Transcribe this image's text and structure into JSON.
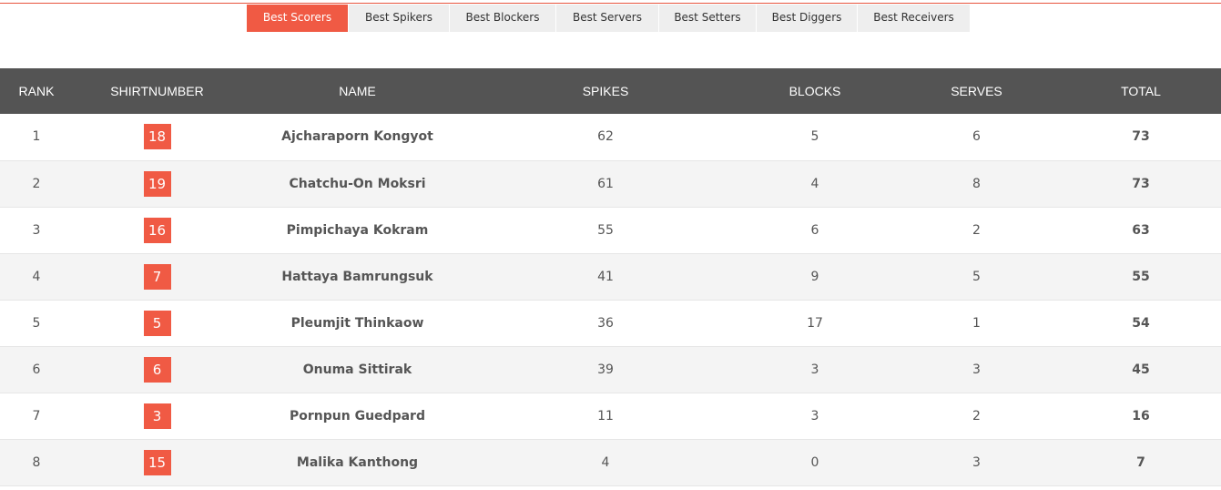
{
  "tabs": [
    {
      "label": "Best Scorers",
      "active": true
    },
    {
      "label": "Best Spikers",
      "active": false
    },
    {
      "label": "Best Blockers",
      "active": false
    },
    {
      "label": "Best Servers",
      "active": false
    },
    {
      "label": "Best Setters",
      "active": false
    },
    {
      "label": "Best Diggers",
      "active": false
    },
    {
      "label": "Best Receivers",
      "active": false
    }
  ],
  "table": {
    "headers": {
      "rank": "RANK",
      "shirtnumber": "SHIRTNUMBER",
      "name": "NAME",
      "spikes": "SPIKES",
      "blocks": "BLOCKS",
      "serves": "SERVES",
      "total": "TOTAL"
    },
    "rows": [
      {
        "rank": "1",
        "shirt": "18",
        "name": "Ajcharaporn Kongyot",
        "spikes": "62",
        "blocks": "5",
        "serves": "6",
        "total": "73"
      },
      {
        "rank": "2",
        "shirt": "19",
        "name": "Chatchu-On Moksri",
        "spikes": "61",
        "blocks": "4",
        "serves": "8",
        "total": "73"
      },
      {
        "rank": "3",
        "shirt": "16",
        "name": "Pimpichaya Kokram",
        "spikes": "55",
        "blocks": "6",
        "serves": "2",
        "total": "63"
      },
      {
        "rank": "4",
        "shirt": "7",
        "name": "Hattaya Bamrungsuk",
        "spikes": "41",
        "blocks": "9",
        "serves": "5",
        "total": "55"
      },
      {
        "rank": "5",
        "shirt": "5",
        "name": "Pleumjit Thinkaow",
        "spikes": "36",
        "blocks": "17",
        "serves": "1",
        "total": "54"
      },
      {
        "rank": "6",
        "shirt": "6",
        "name": "Onuma Sittirak",
        "spikes": "39",
        "blocks": "3",
        "serves": "3",
        "total": "45"
      },
      {
        "rank": "7",
        "shirt": "3",
        "name": "Pornpun Guedpard",
        "spikes": "11",
        "blocks": "3",
        "serves": "2",
        "total": "16"
      },
      {
        "rank": "8",
        "shirt": "15",
        "name": "Malika Kanthong",
        "spikes": "4",
        "blocks": "0",
        "serves": "3",
        "total": "7"
      }
    ]
  },
  "colors": {
    "accent": "#f05a44",
    "header_bg": "#545454",
    "tab_bg": "#eeeeee"
  }
}
